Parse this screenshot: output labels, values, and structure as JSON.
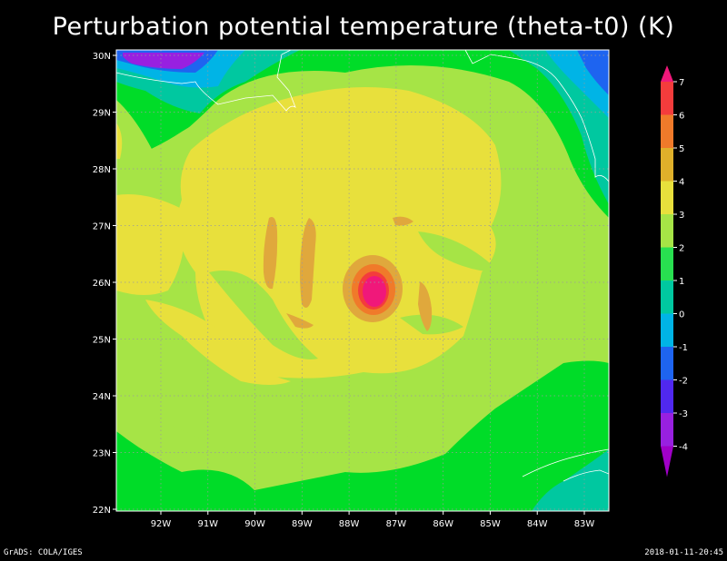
{
  "chart_data": {
    "type": "heatmap",
    "title": "Perturbation potential temperature (theta-t0) (K)",
    "x_ticks": [
      "92W",
      "91W",
      "90W",
      "89W",
      "88W",
      "87W",
      "86W",
      "85W",
      "84W",
      "83W"
    ],
    "y_ticks": [
      "30N",
      "29N",
      "28N",
      "27N",
      "26N",
      "25N",
      "24N",
      "23N",
      "22N"
    ],
    "x_range": [
      "92.9W",
      "82.4W"
    ],
    "y_range": [
      "22N",
      "30N"
    ],
    "grid": true,
    "legend_placement": "right",
    "colorbar": {
      "levels": [
        "7",
        "6",
        "5",
        "4",
        "3",
        "2",
        "1",
        "0",
        "-1",
        "-2",
        "-3",
        "-4"
      ],
      "colors": [
        "#f0187a",
        "#f43c3c",
        "#f07a2a",
        "#e0b02a",
        "#e8e03c",
        "#a6e446",
        "#28e050",
        "#00c8a0",
        "#00b4e6",
        "#1e64f0",
        "#5028f0",
        "#9820e0",
        "#a000c8"
      ]
    },
    "field_colors": {
      "le_m4": "#a000c8",
      "m3_m4": "#9820e0",
      "m2_m3": "#5028f0",
      "m1_m2": "#1e64f0",
      "0_m1": "#00b4e6",
      "0_1": "#00c8a0",
      "1_2": "#00dc28",
      "2_3": "#a6e446",
      "3_4": "#e8e03c",
      "4_5": "#e0a83c",
      "5_6": "#f07a2a",
      "6_7": "#f43c3c",
      "gt7": "#f0187a"
    },
    "storm_center": {
      "lon": "87.6W",
      "lat": "25.8N"
    }
  },
  "footer": {
    "left": "GrADS: COLA/IGES",
    "right": "2018-01-11-20:45"
  }
}
